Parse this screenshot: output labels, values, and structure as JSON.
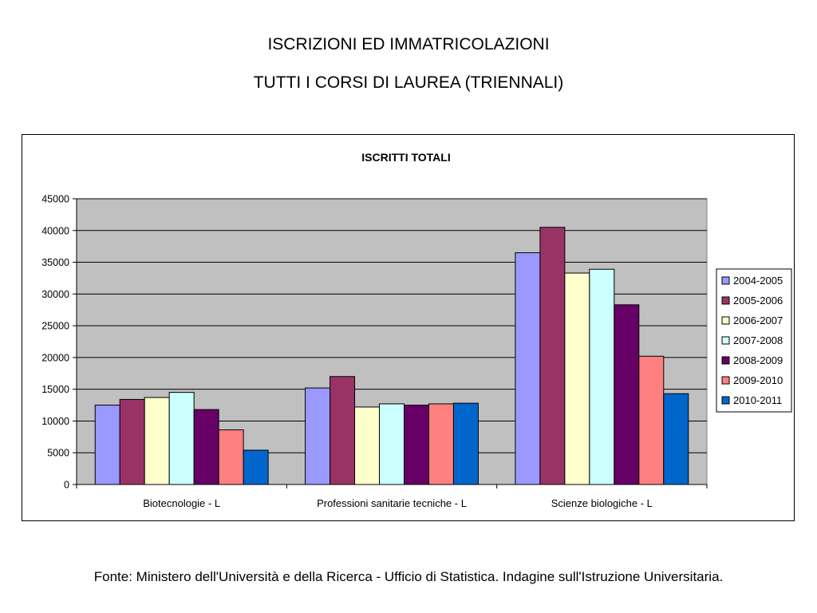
{
  "slide": {
    "title_line1": "ISCRIZIONI ED IMMATRICOLAZIONI",
    "title_line2": "TUTTI I CORSI DI LAUREA (TRIENNALI)",
    "source": "Fonte: Ministero dell'Università e della Ricerca - Ufficio di Statistica. Indagine sull'Istruzione Universitaria."
  },
  "chart_data": {
    "type": "bar",
    "title": "ISCRITTI TOTALI",
    "xlabel": "",
    "ylabel": "",
    "ylim": [
      0,
      45000
    ],
    "yticks": [
      0,
      5000,
      10000,
      15000,
      20000,
      25000,
      30000,
      35000,
      40000,
      45000
    ],
    "grid": true,
    "legend_position": "right",
    "plot_background": "#c0c0c0",
    "categories": [
      "Biotecnologie - L",
      "Professioni sanitarie tecniche - L",
      "Scienze biologiche - L"
    ],
    "series": [
      {
        "name": "2004-2005",
        "color": "#9999ff",
        "values": [
          12500,
          15200,
          36500
        ]
      },
      {
        "name": "2005-2006",
        "color": "#993366",
        "values": [
          13400,
          17000,
          40500
        ]
      },
      {
        "name": "2006-2007",
        "color": "#ffffcc",
        "values": [
          13700,
          12200,
          33300
        ]
      },
      {
        "name": "2007-2008",
        "color": "#ccffff",
        "values": [
          14500,
          12700,
          33900
        ]
      },
      {
        "name": "2008-2009",
        "color": "#660066",
        "values": [
          11800,
          12500,
          28300
        ]
      },
      {
        "name": "2009-2010",
        "color": "#ff8080",
        "values": [
          8600,
          12700,
          20200
        ]
      },
      {
        "name": "2010-2011",
        "color": "#0066cc",
        "values": [
          5400,
          12800,
          14300
        ]
      }
    ]
  }
}
